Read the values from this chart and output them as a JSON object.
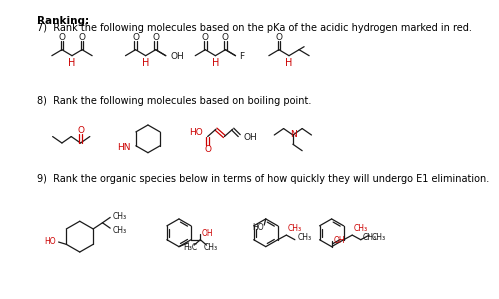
{
  "title": "Ranking:",
  "q7_text": "7)  Rank the following molecules based on the pKa of the acidic hydrogen marked in red.",
  "q8_text": "8)  Rank the following molecules based on boiling point.",
  "q9_text": "9)  Rank the organic species below in terms of how quickly they will undergo E1 elimination.",
  "bg_color": "#ffffff",
  "text_color": "#000000",
  "red_color": "#cc0000",
  "bond_color": "#1a1a1a",
  "title_fontsize": 7.5,
  "label_fontsize": 7.0,
  "small_fontsize": 5.5,
  "lw": 0.9
}
